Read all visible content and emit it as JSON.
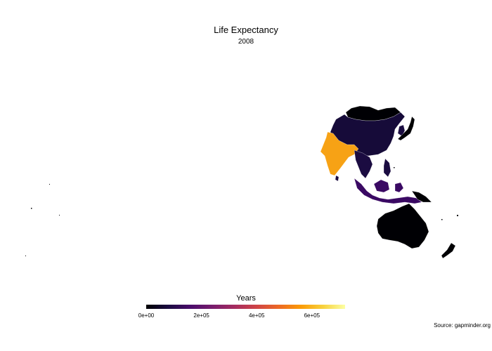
{
  "title": "Life Expectancy",
  "subtitle": "2008",
  "legend": {
    "title": "Years",
    "ticks": [
      "0e+00",
      "2e+05",
      "4e+05",
      "6e+05"
    ],
    "tick_values": [
      0,
      200000,
      400000,
      600000
    ],
    "range": [
      0,
      720000
    ],
    "colorscale": [
      "#000004",
      "#1b0c41",
      "#4a0c6b",
      "#781c6d",
      "#a52c60",
      "#cf4446",
      "#ed6925",
      "#fb9b06",
      "#f7d13d",
      "#fcffa4"
    ]
  },
  "source": "Source: gapminder.org",
  "regions": [
    {
      "name": "China",
      "color": "#160b39"
    },
    {
      "name": "Mongolia",
      "color": "#000004"
    },
    {
      "name": "India",
      "color": "#f7a215"
    },
    {
      "name": "Indonesia",
      "color": "#3a0963"
    },
    {
      "name": "Australia",
      "color": "#000004"
    },
    {
      "name": "Japan",
      "color": "#000004"
    },
    {
      "name": "New Zealand",
      "color": "#000004"
    },
    {
      "name": "Southeast Asia",
      "color": "#1b0c41"
    },
    {
      "name": "Philippines",
      "color": "#1b0c41"
    },
    {
      "name": "Papua New Guinea",
      "color": "#000004"
    }
  ]
}
